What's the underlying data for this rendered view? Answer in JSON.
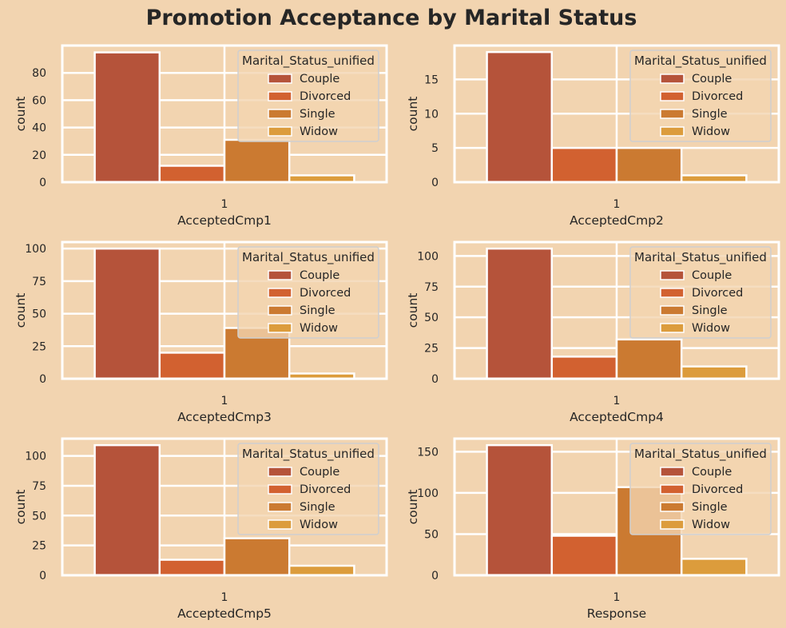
{
  "figure": {
    "title": "Promotion Acceptance by Marital Status",
    "background_color": "#f2d4b0",
    "text_color": "#262626",
    "grid_color": "#ffffff"
  },
  "legend_title": "Marital_Status_unified",
  "series_colors": {
    "Couple": "#b5533a",
    "Divorced": "#d26130",
    "Single": "#cb7a31",
    "Widow": "#dc9c3c"
  },
  "chart_data": [
    {
      "type": "bar",
      "title": "",
      "xlabel": "AcceptedCmp1",
      "ylabel": "count",
      "categories": [
        "1"
      ],
      "series": [
        {
          "name": "Couple",
          "values": [
            95
          ]
        },
        {
          "name": "Divorced",
          "values": [
            12
          ]
        },
        {
          "name": "Single",
          "values": [
            31
          ]
        },
        {
          "name": "Widow",
          "values": [
            5
          ]
        }
      ],
      "yticks": [
        0,
        20,
        40,
        60,
        80
      ],
      "ylim": [
        0,
        100
      ],
      "grid": true,
      "legend_position": "top-right",
      "legend_title": "Marital_Status_unified"
    },
    {
      "type": "bar",
      "title": "",
      "xlabel": "AcceptedCmp2",
      "ylabel": "count",
      "categories": [
        "1"
      ],
      "series": [
        {
          "name": "Couple",
          "values": [
            19
          ]
        },
        {
          "name": "Divorced",
          "values": [
            5
          ]
        },
        {
          "name": "Single",
          "values": [
            5
          ]
        },
        {
          "name": "Widow",
          "values": [
            1
          ]
        }
      ],
      "yticks": [
        0,
        5,
        10,
        15
      ],
      "ylim": [
        0,
        19.95
      ],
      "grid": true,
      "legend_position": "top-right",
      "legend_title": "Marital_Status_unified"
    },
    {
      "type": "bar",
      "title": "",
      "xlabel": "AcceptedCmp3",
      "ylabel": "count",
      "categories": [
        "1"
      ],
      "series": [
        {
          "name": "Couple",
          "values": [
            100
          ]
        },
        {
          "name": "Divorced",
          "values": [
            20
          ]
        },
        {
          "name": "Single",
          "values": [
            39
          ]
        },
        {
          "name": "Widow",
          "values": [
            4
          ]
        }
      ],
      "yticks": [
        0,
        25,
        50,
        75,
        100
      ],
      "ylim": [
        0,
        105
      ],
      "grid": true,
      "legend_position": "top-right",
      "legend_title": "Marital_Status_unified"
    },
    {
      "type": "bar",
      "title": "",
      "xlabel": "AcceptedCmp4",
      "ylabel": "count",
      "categories": [
        "1"
      ],
      "series": [
        {
          "name": "Couple",
          "values": [
            106
          ]
        },
        {
          "name": "Divorced",
          "values": [
            18
          ]
        },
        {
          "name": "Single",
          "values": [
            32
          ]
        },
        {
          "name": "Widow",
          "values": [
            10
          ]
        }
      ],
      "yticks": [
        0,
        25,
        50,
        75,
        100
      ],
      "ylim": [
        0,
        111.3
      ],
      "grid": true,
      "legend_position": "top-right",
      "legend_title": "Marital_Status_unified"
    },
    {
      "type": "bar",
      "title": "",
      "xlabel": "AcceptedCmp5",
      "ylabel": "count",
      "categories": [
        "1"
      ],
      "series": [
        {
          "name": "Couple",
          "values": [
            109
          ]
        },
        {
          "name": "Divorced",
          "values": [
            13
          ]
        },
        {
          "name": "Single",
          "values": [
            31
          ]
        },
        {
          "name": "Widow",
          "values": [
            8
          ]
        }
      ],
      "yticks": [
        0,
        25,
        50,
        75,
        100
      ],
      "ylim": [
        0,
        114.45
      ],
      "grid": true,
      "legend_position": "top-right",
      "legend_title": "Marital_Status_unified"
    },
    {
      "type": "bar",
      "title": "",
      "xlabel": "Response",
      "ylabel": "count",
      "categories": [
        "1"
      ],
      "series": [
        {
          "name": "Couple",
          "values": [
            158
          ]
        },
        {
          "name": "Divorced",
          "values": [
            48
          ]
        },
        {
          "name": "Single",
          "values": [
            107
          ]
        },
        {
          "name": "Widow",
          "values": [
            20
          ]
        }
      ],
      "yticks": [
        0,
        50,
        100,
        150
      ],
      "ylim": [
        0,
        165.9
      ],
      "grid": true,
      "legend_position": "top-right",
      "legend_title": "Marital_Status_unified"
    }
  ]
}
